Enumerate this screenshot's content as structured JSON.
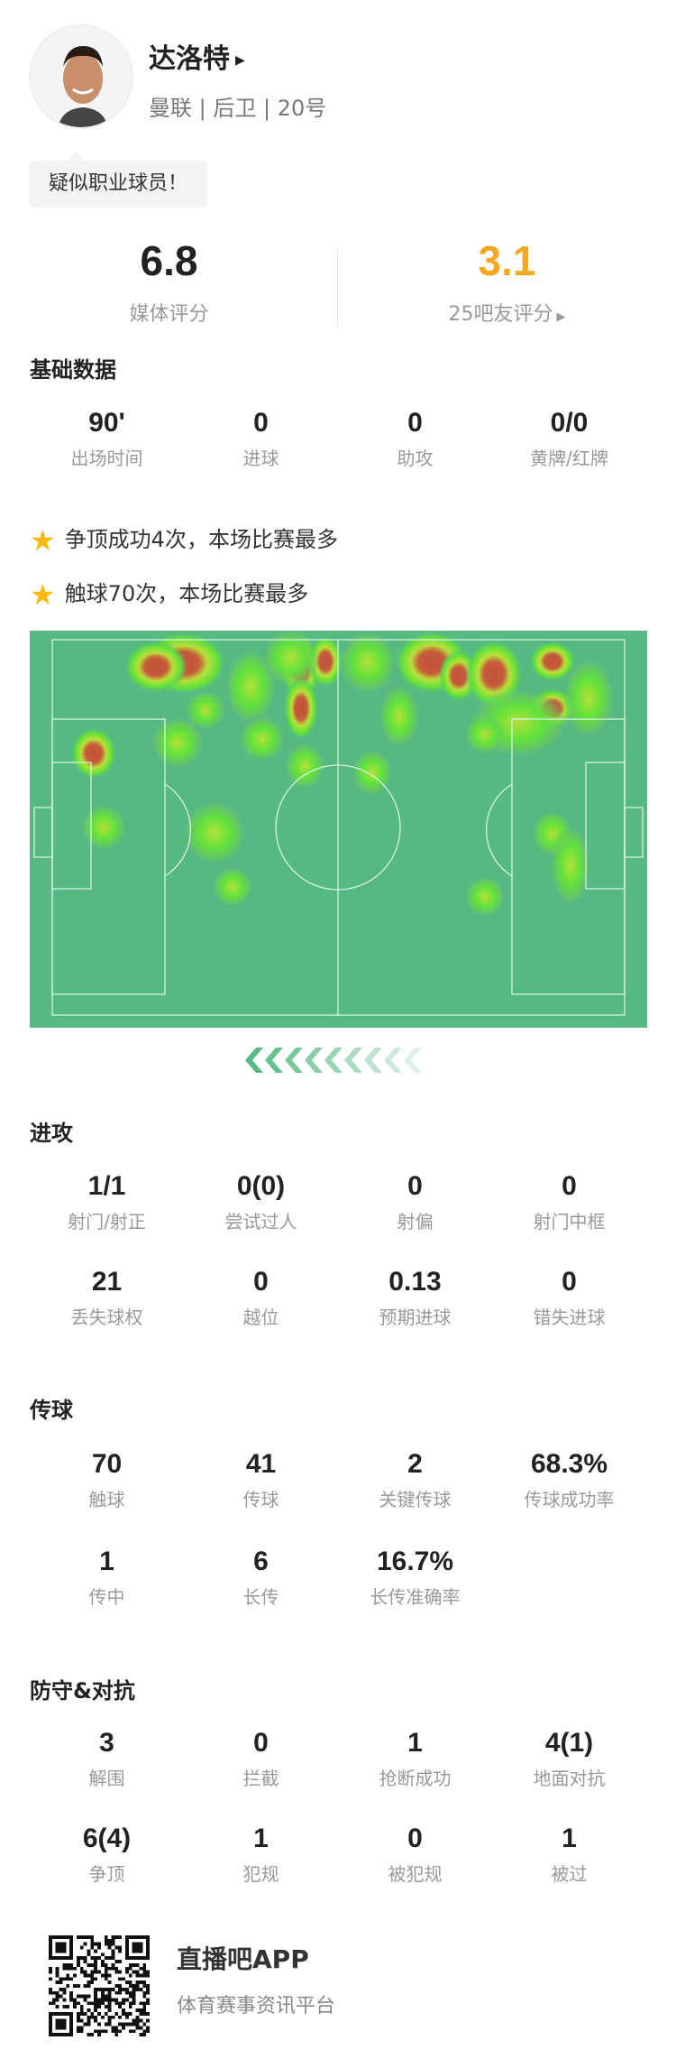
{
  "player": {
    "name": "达洛特",
    "meta": "曼联 | 后卫 | 20号",
    "tag": "疑似职业球员！"
  },
  "ratings": {
    "media": {
      "value": "6.8",
      "label": "媒体评分",
      "color": "#222222"
    },
    "fans": {
      "value": "3.1",
      "label": "25吧友评分",
      "color": "#f5a623"
    }
  },
  "basic": {
    "title": "基础数据",
    "items": [
      {
        "value": "90'",
        "label": "出场时间"
      },
      {
        "value": "0",
        "label": "进球"
      },
      {
        "value": "0",
        "label": "助攻"
      },
      {
        "value": "0/0",
        "label": "黄牌/红牌"
      }
    ]
  },
  "highlights": [
    "争顶成功4次，本场比赛最多",
    "触球70次，本场比赛最多"
  ],
  "attack": {
    "title": "进攻",
    "items": [
      {
        "value": "1/1",
        "label": "射门/射正"
      },
      {
        "value": "0(0)",
        "label": "尝试过人"
      },
      {
        "value": "0",
        "label": "射偏"
      },
      {
        "value": "0",
        "label": "射门中框"
      },
      {
        "value": "21",
        "label": "丢失球权"
      },
      {
        "value": "0",
        "label": "越位"
      },
      {
        "value": "0.13",
        "label": "预期进球"
      },
      {
        "value": "0",
        "label": "错失进球"
      }
    ]
  },
  "passing": {
    "title": "传球",
    "items": [
      {
        "value": "70",
        "label": "触球"
      },
      {
        "value": "41",
        "label": "传球"
      },
      {
        "value": "2",
        "label": "关键传球"
      },
      {
        "value": "68.3%",
        "label": "传球成功率"
      },
      {
        "value": "1",
        "label": "传中"
      },
      {
        "value": "6",
        "label": "长传"
      },
      {
        "value": "16.7%",
        "label": "长传准确率"
      }
    ]
  },
  "defense": {
    "title": "防守&对抗",
    "items": [
      {
        "value": "3",
        "label": "解围"
      },
      {
        "value": "0",
        "label": "拦截"
      },
      {
        "value": "1",
        "label": "抢断成功"
      },
      {
        "value": "4(1)",
        "label": "地面对抗"
      },
      {
        "value": "6(4)",
        "label": "争顶"
      },
      {
        "value": "1",
        "label": "犯规"
      },
      {
        "value": "0",
        "label": "被犯规"
      },
      {
        "value": "1",
        "label": "被过"
      }
    ]
  },
  "footer": {
    "app": "直播吧APP",
    "subtitle": "体育赛事资讯平台"
  },
  "colors": {
    "pitch": "#57b982",
    "accent": "#f5a623"
  }
}
